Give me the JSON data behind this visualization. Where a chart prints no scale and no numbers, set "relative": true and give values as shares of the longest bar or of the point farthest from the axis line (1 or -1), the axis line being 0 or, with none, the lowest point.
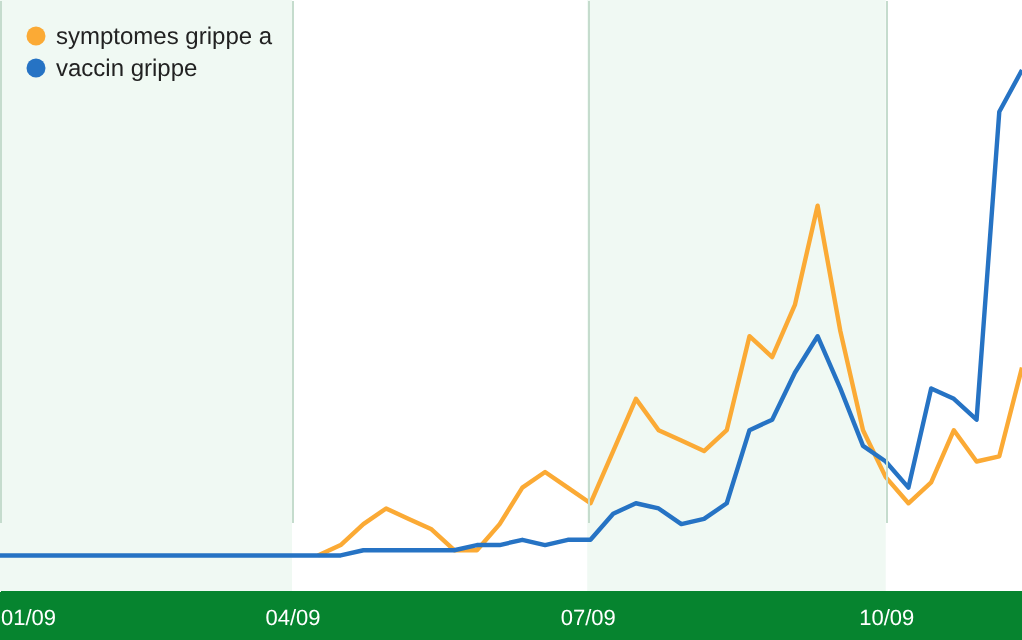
{
  "chart_data": {
    "type": "line",
    "relative": true,
    "x": [
      "2009-01-01",
      "2009-01-08",
      "2009-01-15",
      "2009-01-22",
      "2009-01-29",
      "2009-02-05",
      "2009-02-12",
      "2009-02-19",
      "2009-02-26",
      "2009-03-05",
      "2009-03-12",
      "2009-03-19",
      "2009-03-26",
      "2009-04-02",
      "2009-04-09",
      "2009-04-16",
      "2009-04-23",
      "2009-04-30",
      "2009-05-07",
      "2009-05-14",
      "2009-05-21",
      "2009-05-28",
      "2009-06-04",
      "2009-06-11",
      "2009-06-18",
      "2009-06-25",
      "2009-07-02",
      "2009-07-09",
      "2009-07-16",
      "2009-07-23",
      "2009-07-30",
      "2009-08-06",
      "2009-08-13",
      "2009-08-20",
      "2009-08-27",
      "2009-09-03",
      "2009-09-10",
      "2009-09-17",
      "2009-09-24",
      "2009-10-01",
      "2009-10-08",
      "2009-10-15",
      "2009-10-22",
      "2009-10-29",
      "2009-11-05",
      "2009-11-12"
    ],
    "xlim": [
      "2009-01-01",
      "2009-11-12"
    ],
    "xticks": [
      {
        "value": "2009-01-01",
        "label": "01/09"
      },
      {
        "value": "2009-04-01",
        "label": "04/09"
      },
      {
        "value": "2009-07-01",
        "label": "07/09"
      },
      {
        "value": "2009-10-01",
        "label": "10/09"
      }
    ],
    "series": [
      {
        "name": "symptomes grippe a",
        "color": "#fbaa35",
        "values": [
          null,
          null,
          null,
          null,
          null,
          null,
          null,
          null,
          null,
          null,
          null,
          null,
          null,
          null,
          0.07,
          0.09,
          0.13,
          0.16,
          0.14,
          0.12,
          0.08,
          0.08,
          0.13,
          0.2,
          0.23,
          0.2,
          0.17,
          0.27,
          0.37,
          0.31,
          0.29,
          0.27,
          0.31,
          0.49,
          0.45,
          0.55,
          0.74,
          0.5,
          0.31,
          0.22,
          0.17,
          0.21,
          0.31,
          0.25,
          0.26,
          0.43
        ]
      },
      {
        "name": "vaccin grippe",
        "color": "#2673c4",
        "values": [
          0.07,
          0.07,
          0.07,
          0.07,
          0.07,
          0.07,
          0.07,
          0.07,
          0.07,
          0.07,
          0.07,
          0.07,
          0.07,
          0.07,
          0.07,
          0.07,
          0.08,
          0.08,
          0.08,
          0.08,
          0.08,
          0.09,
          0.09,
          0.1,
          0.09,
          0.1,
          0.1,
          0.15,
          0.17,
          0.16,
          0.13,
          0.14,
          0.17,
          0.31,
          0.33,
          0.42,
          0.49,
          0.39,
          0.28,
          0.25,
          0.2,
          0.39,
          0.37,
          0.33,
          0.92,
          1
        ]
      }
    ],
    "bands": [
      {
        "axis": "x",
        "from": "2009-01-01",
        "to": "2009-04-01",
        "color": "#f0f9f3"
      },
      {
        "axis": "x",
        "from": "2009-07-01",
        "to": "2009-10-01",
        "color": "#f0f9f3"
      }
    ],
    "grid": "x",
    "legend": "top left",
    "marker": "none",
    "line_style": "solid"
  }
}
